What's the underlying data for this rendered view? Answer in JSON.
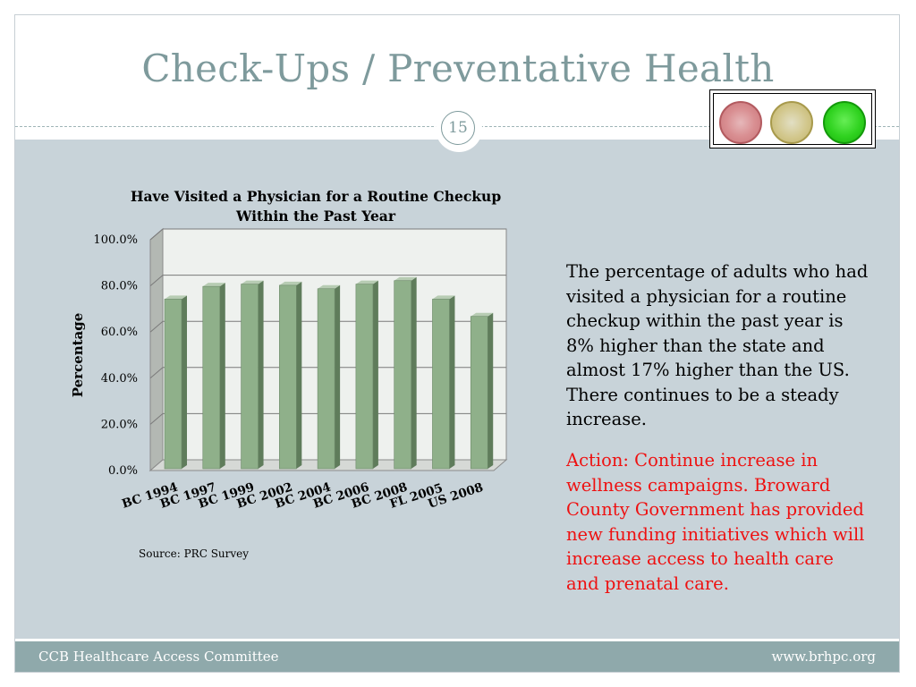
{
  "slide": {
    "title": "Check-Ups / Preventative Health",
    "page_number": "15",
    "traffic_light": {
      "red": "#d98f92",
      "yellow": "#d2c78c",
      "green": "#2fd21f",
      "active": "green"
    }
  },
  "text": {
    "body": "The percentage of adults who had visited a physician for a routine checkup within the past year is 8% higher than the state and almost 17% higher than the US.   There continues to be a steady increase.",
    "action": "Action: Continue increase in wellness campaigns.  Broward County Government has provided new funding initiatives which will increase  access to health care and prenatal care.",
    "source": "Source:  PRC Survey"
  },
  "footer": {
    "left": "CCB Healthcare Access Committee",
    "right": "www.brhpc.org"
  },
  "colors": {
    "title": "#7e9a9c",
    "content_bg": "#c8d3d9",
    "footer_bg": "#8fa9ab",
    "bar": "#8fb08a",
    "action": "#ee1111"
  },
  "chart_data": {
    "type": "bar",
    "title": "Have Visited a Physician for a Routine Checkup Within the Past Year",
    "title_lines": [
      "Have Visited a Physician for a Routine Checkup",
      "Within the Past Year"
    ],
    "ylabel": "Percentage",
    "xlabel": "",
    "categories": [
      "BC 1994",
      "BC 1997",
      "BC 1999",
      "BC 2002",
      "BC 2004",
      "BC 2006",
      "BC 2008",
      "FL  2005",
      "US 2008"
    ],
    "values": [
      73.5,
      79.0,
      80.0,
      79.5,
      78.0,
      80.0,
      81.5,
      73.5,
      66.0
    ],
    "ylim": [
      0,
      100
    ],
    "yticks": [
      0,
      20,
      40,
      60,
      80,
      100
    ],
    "ytick_labels": [
      "0.0%",
      "20.0%",
      "40.0%",
      "60.0%",
      "80.0%",
      "100.0%"
    ],
    "grid": true,
    "legend": "none"
  }
}
